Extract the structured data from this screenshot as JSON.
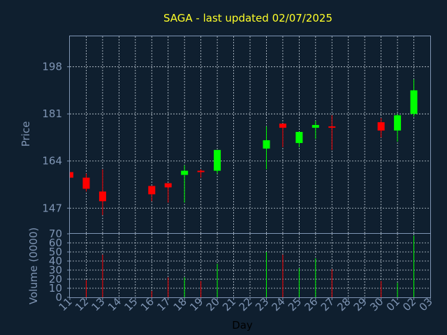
{
  "title": "SAGA - last updated 02/07/2025",
  "colors": {
    "background": "#0f1f2f",
    "up": "#00ff00",
    "down": "#ff0000",
    "title": "#ffff2a",
    "axis": "#7f95b4"
  },
  "chart_data": [
    {
      "type": "candlestick",
      "ylabel": "Price",
      "ylim": [
        138,
        209
      ],
      "yticks": [
        147,
        164,
        181,
        198
      ],
      "grid": true,
      "x": [
        "11",
        "12",
        "13",
        "14",
        "15",
        "16",
        "17",
        "18",
        "19",
        "20",
        "21",
        "22",
        "23",
        "24",
        "25",
        "26",
        "27",
        "28",
        "29",
        "30",
        "01",
        "02",
        "03"
      ],
      "candles": [
        {
          "day": "11",
          "open": 160.0,
          "high": 160.0,
          "low": 158.0,
          "close": 158.0
        },
        {
          "day": "12",
          "open": 158.0,
          "high": 159.5,
          "low": 153.0,
          "close": 154.0
        },
        {
          "day": "13",
          "open": 153.0,
          "high": 161.0,
          "low": 144.5,
          "close": 149.5
        },
        {
          "day": "16",
          "open": 155.0,
          "high": 155.0,
          "low": 149.5,
          "close": 152.0
        },
        {
          "day": "17",
          "open": 156.0,
          "high": 156.0,
          "low": 149.0,
          "close": 154.5
        },
        {
          "day": "18",
          "open": 159.0,
          "high": 162.5,
          "low": 149.0,
          "close": 160.5
        },
        {
          "day": "19",
          "open": 160.5,
          "high": 161.0,
          "low": 158.0,
          "close": 160.0
        },
        {
          "day": "20",
          "open": 160.5,
          "high": 168.0,
          "low": 159.5,
          "close": 168.0
        },
        {
          "day": "23",
          "open": 168.5,
          "high": 176.5,
          "low": 161.0,
          "close": 171.5
        },
        {
          "day": "24",
          "open": 177.5,
          "high": 177.5,
          "low": 169.0,
          "close": 176.0
        },
        {
          "day": "25",
          "open": 170.5,
          "high": 174.5,
          "low": 169.0,
          "close": 174.5
        },
        {
          "day": "26",
          "open": 176.0,
          "high": 178.5,
          "low": 172.0,
          "close": 177.0
        },
        {
          "day": "27",
          "open": 176.5,
          "high": 180.5,
          "low": 168.0,
          "close": 176.0
        },
        {
          "day": "30",
          "open": 178.0,
          "high": 179.5,
          "low": 172.5,
          "close": 175.0
        },
        {
          "day": "01",
          "open": 175.0,
          "high": 181.0,
          "low": 171.0,
          "close": 180.5
        },
        {
          "day": "02",
          "open": 181.0,
          "high": 193.5,
          "low": 180.0,
          "close": 189.5
        }
      ]
    },
    {
      "type": "bar",
      "xlabel": "Day",
      "ylabel": "Volume (0000)",
      "ylim": [
        0,
        70
      ],
      "yticks": [
        0,
        10,
        20,
        30,
        40,
        50,
        60,
        70
      ],
      "grid": true,
      "bars": [
        {
          "day": "12",
          "value": 19,
          "color": "down"
        },
        {
          "day": "13",
          "value": 47,
          "color": "down"
        },
        {
          "day": "16",
          "value": 7,
          "color": "down"
        },
        {
          "day": "17",
          "value": 22,
          "color": "down"
        },
        {
          "day": "18",
          "value": 22,
          "color": "up"
        },
        {
          "day": "19",
          "value": 18,
          "color": "down"
        },
        {
          "day": "20",
          "value": 37,
          "color": "up"
        },
        {
          "day": "23",
          "value": 50,
          "color": "up"
        },
        {
          "day": "24",
          "value": 47,
          "color": "down"
        },
        {
          "day": "25",
          "value": 32,
          "color": "up"
        },
        {
          "day": "26",
          "value": 43,
          "color": "up"
        },
        {
          "day": "27",
          "value": 31,
          "color": "down"
        },
        {
          "day": "30",
          "value": 18,
          "color": "down"
        },
        {
          "day": "01",
          "value": 16,
          "color": "up"
        },
        {
          "day": "02",
          "value": 68,
          "color": "up"
        }
      ]
    }
  ]
}
